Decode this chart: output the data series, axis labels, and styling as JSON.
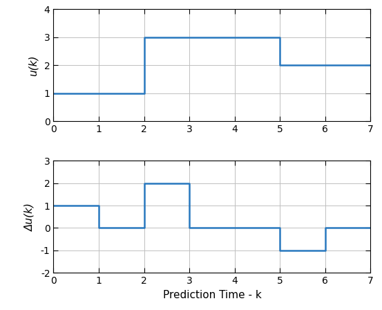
{
  "u_steps": {
    "x": [
      0,
      2,
      2,
      5,
      5,
      7
    ],
    "y": [
      1,
      1,
      3,
      3,
      2,
      2
    ]
  },
  "du_steps": {
    "x": [
      0,
      1,
      1,
      2,
      2,
      3,
      3,
      5,
      5,
      6,
      6,
      7
    ],
    "y": [
      1,
      1,
      0,
      0,
      2,
      2,
      0,
      0,
      -1,
      -1,
      0,
      0
    ]
  },
  "u_ylim": [
    0,
    4
  ],
  "u_yticks": [
    0,
    1,
    2,
    3,
    4
  ],
  "du_ylim": [
    -2,
    3
  ],
  "du_yticks": [
    -2,
    -1,
    0,
    1,
    2,
    3
  ],
  "xlim": [
    0,
    7
  ],
  "xticks": [
    0,
    1,
    2,
    3,
    4,
    5,
    6,
    7
  ],
  "xlabel": "Prediction Time - k",
  "u_ylabel": "u(k)",
  "du_ylabel": "Δu(k)",
  "line_color": "#2878be",
  "line_width": 1.8,
  "grid_color": "#c0c0c0",
  "background_color": "#ffffff",
  "spine_color": "#000000",
  "tick_fontsize": 10,
  "label_fontsize": 11
}
